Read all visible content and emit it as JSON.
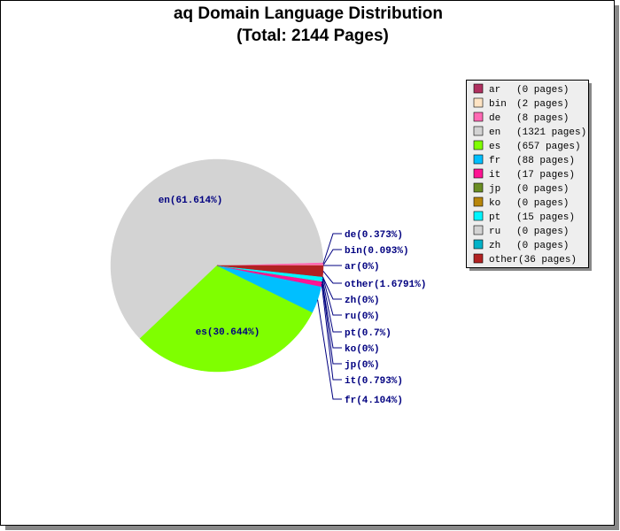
{
  "chart_data": {
    "type": "pie",
    "title": "aq Domain Language Distribution",
    "subtitle": "(Total: 2144 Pages)",
    "categories": [
      "ar",
      "bin",
      "de",
      "en",
      "es",
      "fr",
      "it",
      "jp",
      "ko",
      "pt",
      "ru",
      "zh",
      "other"
    ],
    "values": [
      0,
      0.093,
      0.373,
      61.614,
      30.644,
      4.104,
      0.793,
      0,
      0,
      0.7,
      0,
      0,
      1.6791
    ],
    "value_labels": [
      "ar(0%)",
      "bin(0.093%)",
      "de(0.373%)",
      "en(61.614%)",
      "es(30.644%)",
      "fr(4.104%)",
      "it(0.793%)",
      "jp(0%)",
      "ko(0%)",
      "pt(0.7%)",
      "ru(0%)",
      "zh(0%)",
      "other(1.6791%)"
    ],
    "legend_pages": [
      "(0 pages)",
      "(2 pages)",
      "(8 pages)",
      "(1321 pages)",
      "(657 pages)",
      "(88 pages)",
      "(17 pages)",
      "(0 pages)",
      "(0 pages)",
      "(15 pages)",
      "(0 pages)",
      "(0 pages)",
      "(36 pages)"
    ],
    "colors": [
      "#b03060",
      "#ffe4c4",
      "#ff69b4",
      "#d3d3d3",
      "#7fff00",
      "#00bfff",
      "#ff1493",
      "#6b8e23",
      "#b8860b",
      "#00f5ff",
      "#d3d3d3",
      "#00b2c8",
      "#b22222"
    ],
    "legend": "upper right"
  }
}
